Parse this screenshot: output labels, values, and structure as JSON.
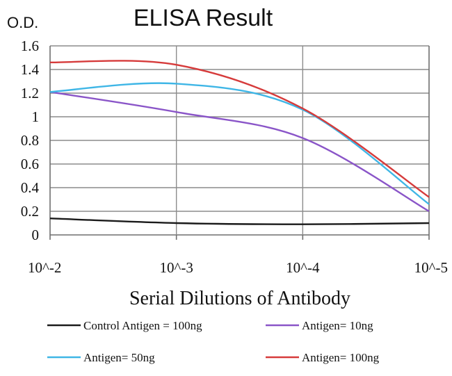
{
  "chart_data": {
    "type": "line",
    "title": "ELISA Result",
    "ylabel": "O.D.",
    "xlabel": "Serial Dilutions of Antibody",
    "categories": [
      "10^-2",
      "10^-3",
      "10^-4",
      "10^-5"
    ],
    "ylim": [
      0,
      1.6
    ],
    "yticks": [
      "0",
      "0.2",
      "0.4",
      "0.6",
      "0.8",
      "1",
      "1.2",
      "1.4",
      "1.6"
    ],
    "grid": true,
    "legend_position": "bottom",
    "series": [
      {
        "name": "Control Antigen = 100ng",
        "color": "#1a1a1a",
        "values": [
          0.14,
          0.1,
          0.09,
          0.1
        ]
      },
      {
        "name": "Antigen= 10ng",
        "color": "#8a55c8",
        "values": [
          1.21,
          1.04,
          0.82,
          0.2
        ]
      },
      {
        "name": "Antigen= 50ng",
        "color": "#3fb6e6",
        "values": [
          1.21,
          1.28,
          1.06,
          0.26
        ]
      },
      {
        "name": "Antigen= 100ng",
        "color": "#d63b3b",
        "values": [
          1.46,
          1.44,
          1.07,
          0.32
        ]
      }
    ]
  }
}
